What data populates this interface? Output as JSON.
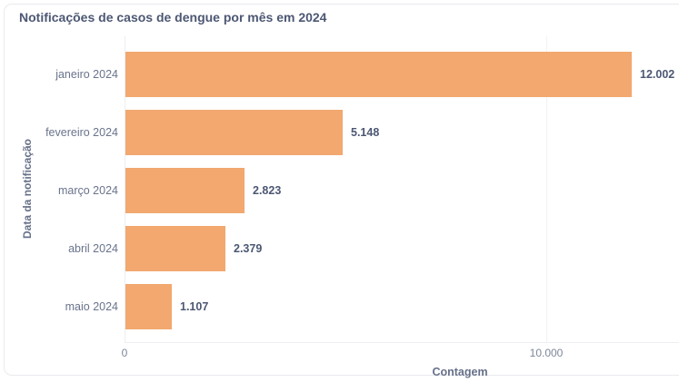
{
  "card": {
    "background": "#ffffff",
    "border_color": "#e9eaee"
  },
  "colors": {
    "title": "#4c5773",
    "category_label": "#69738c",
    "value_label": "#4c5773",
    "tick_label": "#7d8698",
    "axis_title": "#667089",
    "bar": "#f2a86f",
    "gridline": "#f1f2f6",
    "axis_line": "#eceef2"
  },
  "chart_data": {
    "type": "bar",
    "orientation": "horizontal",
    "title": "Notificações de casos de dengue por mês em 2024",
    "categories": [
      "janeiro 2024",
      "fevereiro 2024",
      "março 2024",
      "abril 2024",
      "maio 2024"
    ],
    "values": [
      12002,
      5148,
      2823,
      2379,
      1107
    ],
    "value_labels": [
      "12.002",
      "5.148",
      "2.823",
      "2.379",
      "1.107"
    ],
    "xlabel": "Contagem",
    "ylabel": "Data da notificação",
    "xticks": [
      {
        "value": 0,
        "label": "0"
      },
      {
        "value": 10000,
        "label": "10.000"
      }
    ],
    "xlim": [
      0,
      16200
    ],
    "grid": "vertical-at-ticks",
    "legend": "none",
    "bar_color": "#f2a86f"
  }
}
